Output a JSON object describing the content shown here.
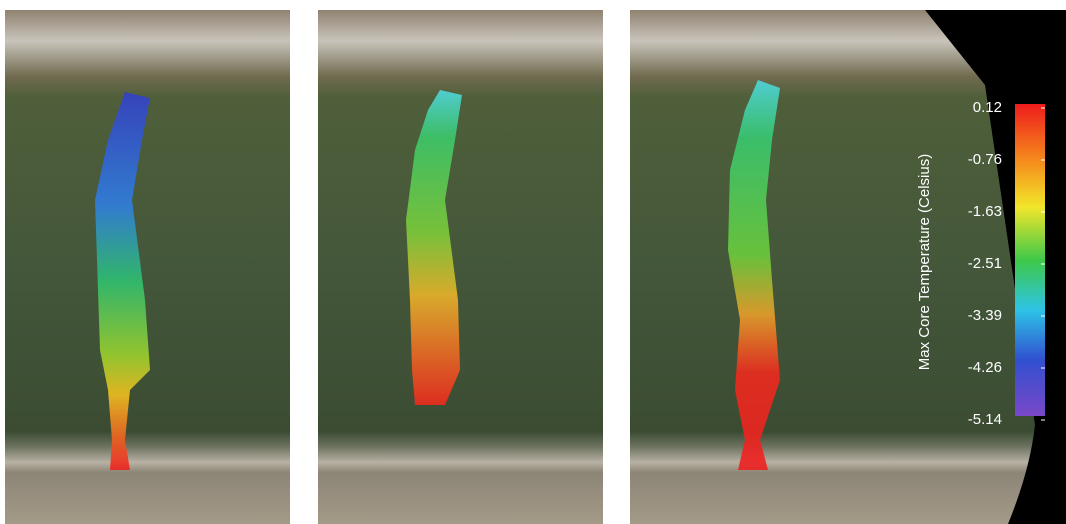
{
  "colorbar": {
    "label": "Max Core Temperature (Celsius)",
    "ticks": [
      "0.12",
      "-0.76",
      "-1.63",
      "-2.51",
      "-3.39",
      "-4.26",
      "-5.14"
    ]
  }
}
